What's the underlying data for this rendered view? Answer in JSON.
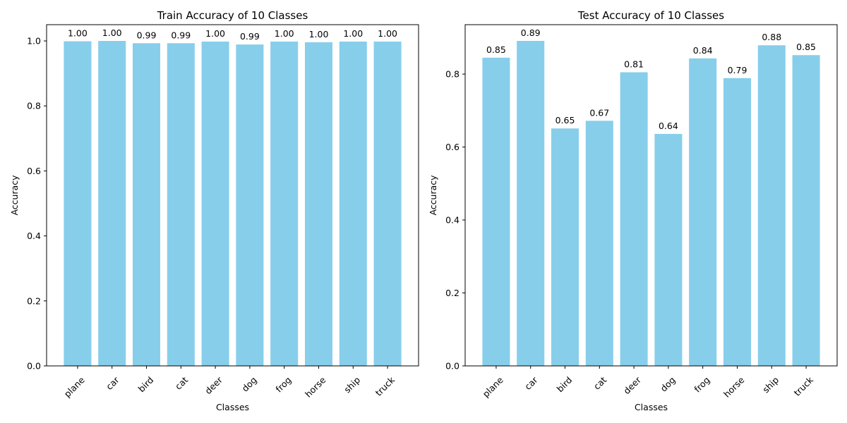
{
  "colors": {
    "bar": "#87CEEB",
    "axis": "#000000",
    "background": "#ffffff"
  },
  "chart_data": [
    {
      "type": "bar",
      "title": "Train Accuracy of 10 Classes",
      "xlabel": "Classes",
      "ylabel": "Accuracy",
      "categories": [
        "plane",
        "car",
        "bird",
        "cat",
        "deer",
        "dog",
        "frog",
        "horse",
        "ship",
        "truck"
      ],
      "values": [
        0.999,
        1.0,
        0.993,
        0.993,
        0.998,
        0.989,
        0.998,
        0.996,
        0.998,
        0.998
      ],
      "data_labels": [
        "1.00",
        "1.00",
        "0.99",
        "0.99",
        "1.00",
        "0.99",
        "1.00",
        "1.00",
        "1.00",
        "1.00"
      ],
      "yticks": [
        0.0,
        0.2,
        0.4,
        0.6,
        0.8,
        1.0
      ],
      "ytick_labels": [
        "0.0",
        "0.2",
        "0.4",
        "0.6",
        "0.8",
        "1.0"
      ],
      "ylim": [
        0,
        1.05
      ],
      "grid": false,
      "legend": "none"
    },
    {
      "type": "bar",
      "title": "Test Accuracy of 10 Classes",
      "xlabel": "Classes",
      "ylabel": "Accuracy",
      "categories": [
        "plane",
        "car",
        "bird",
        "cat",
        "deer",
        "dog",
        "frog",
        "horse",
        "ship",
        "truck"
      ],
      "values": [
        0.845,
        0.891,
        0.651,
        0.672,
        0.805,
        0.636,
        0.843,
        0.789,
        0.879,
        0.852
      ],
      "data_labels": [
        "0.85",
        "0.89",
        "0.65",
        "0.67",
        "0.81",
        "0.64",
        "0.84",
        "0.79",
        "0.88",
        "0.85"
      ],
      "yticks": [
        0.0,
        0.2,
        0.4,
        0.6,
        0.8
      ],
      "ytick_labels": [
        "0.0",
        "0.2",
        "0.4",
        "0.6",
        "0.8"
      ],
      "ylim": [
        0,
        0.9355
      ],
      "grid": false,
      "legend": "none"
    }
  ]
}
